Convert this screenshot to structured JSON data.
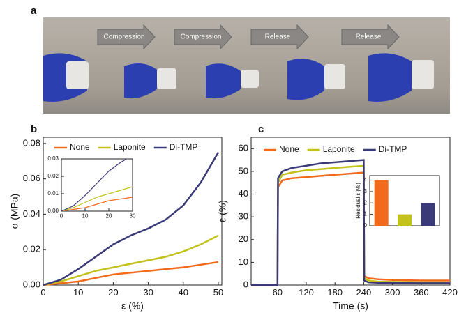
{
  "panel_a": {
    "label": "a",
    "arrows": [
      "Compression",
      "Compression",
      "Release",
      "Release"
    ]
  },
  "chart_data": [
    {
      "type": "line",
      "label": "b",
      "xlabel": "ε (%)",
      "ylabel": "σ (MPa)",
      "x": [
        0,
        5,
        10,
        15,
        20,
        25,
        30,
        35,
        40,
        45,
        50
      ],
      "series": [
        {
          "name": "None",
          "color": "#f26b1d",
          "values": [
            0,
            0.001,
            0.002,
            0.004,
            0.006,
            0.007,
            0.008,
            0.009,
            0.01,
            0.0115,
            0.013
          ]
        },
        {
          "name": "Laponite",
          "color": "#c2c21a",
          "values": [
            0,
            0.002,
            0.005,
            0.008,
            0.01,
            0.012,
            0.014,
            0.016,
            0.019,
            0.023,
            0.028
          ]
        },
        {
          "name": "Di-TMP",
          "color": "#3b3a78",
          "values": [
            0,
            0.003,
            0.009,
            0.016,
            0.023,
            0.028,
            0.032,
            0.037,
            0.045,
            0.058,
            0.075
          ]
        }
      ],
      "xlim": [
        0,
        51
      ],
      "xticks": [
        0,
        10,
        20,
        30,
        40,
        50
      ],
      "ylim": [
        0,
        0.0835
      ],
      "yticks": [
        {
          "value": 0,
          "label": "0.00"
        },
        0.02,
        0.04,
        0.06,
        0.08
      ],
      "inset": {
        "type": "line",
        "xlim": [
          0,
          30
        ],
        "xticks": [
          0,
          10,
          20,
          30
        ],
        "ylim": [
          0,
          0.03
        ],
        "yticks": [
          {
            "value": 0,
            "label": "0.00"
          },
          0.01,
          0.02,
          0.03
        ]
      }
    },
    {
      "type": "line",
      "label": "c",
      "xlabel": "Time (s)",
      "ylabel": "ε (%)",
      "x": [
        5,
        60,
        61,
        70,
        90,
        120,
        150,
        180,
        210,
        240,
        241,
        250,
        270,
        300,
        360,
        420
      ],
      "series": [
        {
          "name": "None",
          "color": "#f26b1d",
          "values": [
            0,
            0,
            43,
            46,
            47,
            47.5,
            48,
            48.5,
            49,
            49.5,
            4,
            3,
            2.5,
            2.2,
            2,
            2
          ]
        },
        {
          "name": "Laponite",
          "color": "#c2c21a",
          "values": [
            0,
            0,
            45,
            48.5,
            49.5,
            50.5,
            51,
            51.5,
            52,
            52.5,
            3,
            2,
            1.5,
            1.4,
            1.2,
            1.2
          ]
        },
        {
          "name": "Di-TMP",
          "color": "#3b3a78",
          "values": [
            0,
            0,
            47,
            50,
            51.5,
            52.5,
            53.5,
            54,
            54.5,
            55,
            2,
            1.2,
            1,
            0.9,
            0.8,
            0.8
          ]
        }
      ],
      "xlim": [
        5,
        420
      ],
      "xticks": [
        60,
        120,
        180,
        240,
        300,
        360,
        420
      ],
      "ylim": [
        0,
        65
      ],
      "yticks": [
        0,
        10,
        20,
        30,
        40,
        50,
        60
      ],
      "inset": {
        "type": "bar",
        "ylabel": "Residual ε (%)",
        "values": [
          4,
          1,
          2
        ],
        "colors": [
          "#f26b1d",
          "#c2c21a",
          "#3b3a78"
        ],
        "ylim": [
          0,
          4.4
        ],
        "yticks": [
          0,
          1,
          2,
          3,
          4
        ]
      }
    }
  ]
}
